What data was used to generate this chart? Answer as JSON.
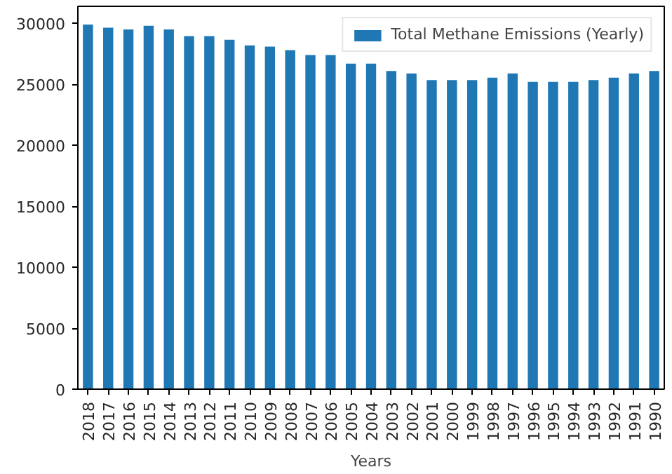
{
  "chart_data": {
    "type": "bar",
    "xlabel": "Years",
    "categories": [
      "2018",
      "2017",
      "2016",
      "2015",
      "2014",
      "2013",
      "2012",
      "2011",
      "2010",
      "2009",
      "2008",
      "2007",
      "2006",
      "2005",
      "2004",
      "2003",
      "2002",
      "2001",
      "2000",
      "1999",
      "1998",
      "1997",
      "1996",
      "1995",
      "1994",
      "1993",
      "1992",
      "1991",
      "1990"
    ],
    "series": [
      {
        "name": "Total Methane Emissions (Yearly)",
        "color": "#1f77b4",
        "values": [
          29900,
          29650,
          29500,
          29800,
          29500,
          28950,
          28950,
          28650,
          28200,
          28100,
          27800,
          27400,
          27400,
          26700,
          26700,
          26100,
          25900,
          25350,
          25350,
          25350,
          25550,
          25900,
          25200,
          25200,
          25200,
          25350,
          25550,
          25900,
          26100
        ]
      }
    ],
    "ylim": [
      0,
      31400
    ],
    "yticks": [
      0,
      5000,
      10000,
      15000,
      20000,
      25000,
      30000
    ],
    "grid": false,
    "legend": "top right"
  }
}
